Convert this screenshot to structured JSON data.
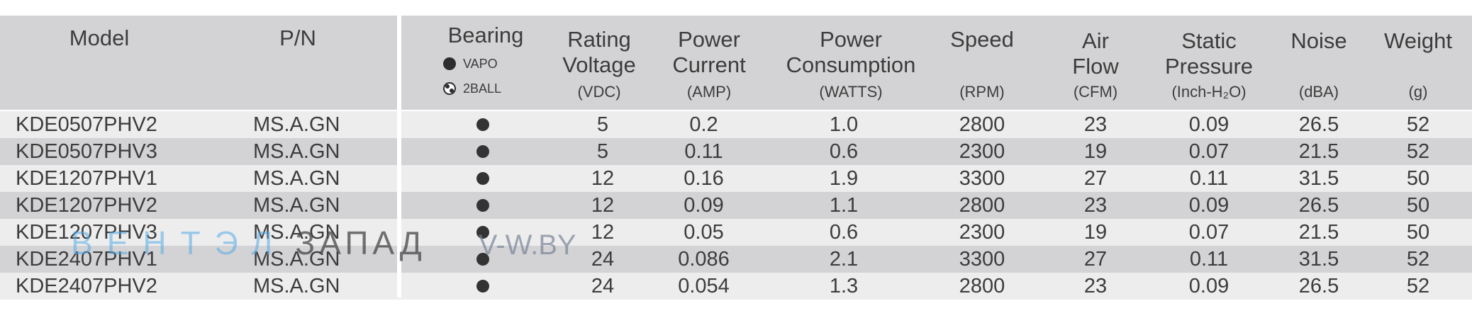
{
  "headers": {
    "model": "Model",
    "pn": "P/N",
    "bearing": "Bearing",
    "bearing_legend": {
      "vapo": "VAPO",
      "ball": "2BALL"
    },
    "voltage": {
      "line1": "Rating",
      "line2": "Voltage",
      "unit": "(VDC)"
    },
    "current": {
      "line1": "Power",
      "line2": "Current",
      "unit": "(AMP)"
    },
    "consumption": {
      "line1": "Power",
      "line2": "Consumption",
      "unit": "(WATTS)"
    },
    "speed": {
      "line1": "Speed",
      "unit": "(RPM)"
    },
    "airflow": {
      "line1": "Air",
      "line2": "Flow",
      "unit": "(CFM)"
    },
    "pressure": {
      "line1": "Static",
      "line2": "Pressure",
      "unit": "(Inch-H₂O)"
    },
    "noise": {
      "line1": "Noise",
      "unit": "(dBA)"
    },
    "weight": {
      "line1": "Weight",
      "unit": "(g)"
    }
  },
  "rows": [
    {
      "model": "KDE0507PHV2",
      "pn": "MS.A.GN",
      "bearing": "VAPO",
      "voltage": "5",
      "current": "0.2",
      "power": "1.0",
      "speed": "2800",
      "airflow": "23",
      "pressure": "0.09",
      "noise": "26.5",
      "weight": "52"
    },
    {
      "model": "KDE0507PHV3",
      "pn": "MS.A.GN",
      "bearing": "VAPO",
      "voltage": "5",
      "current": "0.11",
      "power": "0.6",
      "speed": "2300",
      "airflow": "19",
      "pressure": "0.07",
      "noise": "21.5",
      "weight": "52"
    },
    {
      "model": "KDE1207PHV1",
      "pn": "MS.A.GN",
      "bearing": "VAPO",
      "voltage": "12",
      "current": "0.16",
      "power": "1.9",
      "speed": "3300",
      "airflow": "27",
      "pressure": "0.11",
      "noise": "31.5",
      "weight": "50"
    },
    {
      "model": "KDE1207PHV2",
      "pn": "MS.A.GN",
      "bearing": "VAPO",
      "voltage": "12",
      "current": "0.09",
      "power": "1.1",
      "speed": "2800",
      "airflow": "23",
      "pressure": "0.09",
      "noise": "26.5",
      "weight": "50"
    },
    {
      "model": "KDE1207PHV3",
      "pn": "MS.A.GN",
      "bearing": "VAPO",
      "voltage": "12",
      "current": "0.05",
      "power": "0.6",
      "speed": "2300",
      "airflow": "19",
      "pressure": "0.07",
      "noise": "21.5",
      "weight": "50"
    },
    {
      "model": "KDE2407PHV1",
      "pn": "MS.A.GN",
      "bearing": "VAPO",
      "voltage": "24",
      "current": "0.086",
      "power": "2.1",
      "speed": "3300",
      "airflow": "27",
      "pressure": "0.11",
      "noise": "31.5",
      "weight": "52"
    },
    {
      "model": "KDE2407PHV2",
      "pn": "MS.A.GN",
      "bearing": "VAPO",
      "voltage": "24",
      "current": "0.054",
      "power": "1.3",
      "speed": "2800",
      "airflow": "23",
      "pressure": "0.09",
      "noise": "26.5",
      "weight": "52"
    }
  ],
  "watermark": {
    "part1": "ВЕНТЭЛ",
    "part2": "ЗАПАД",
    "part3": "V-W.BY"
  },
  "colors": {
    "header_bg": "#d3d3d5",
    "row_light": "#ededee",
    "row_dark": "#d3d3d5",
    "text": "#3c3c3c",
    "watermark_blue": "#56ace4"
  }
}
